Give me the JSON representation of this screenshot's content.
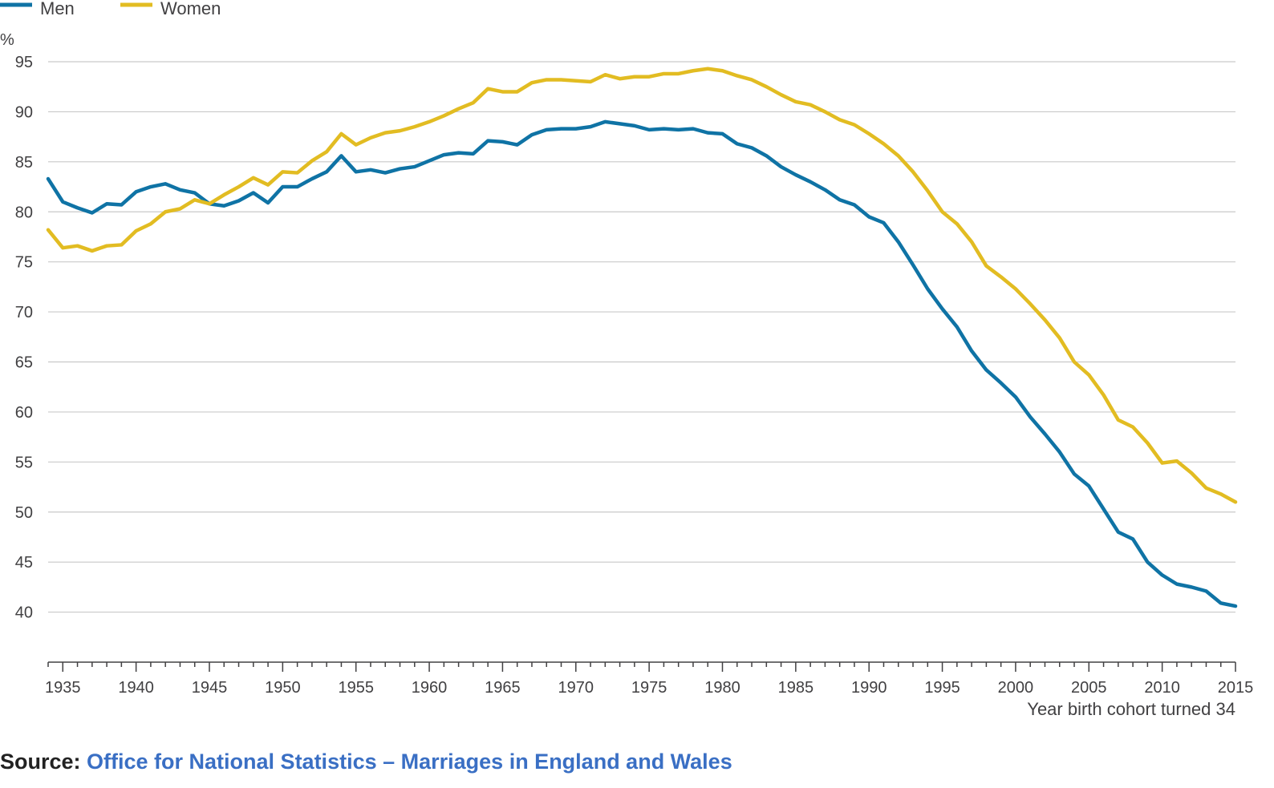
{
  "chart_data": {
    "type": "line",
    "ylabel": "%",
    "xlabel": "Year birth cohort turned 34",
    "ylim": [
      35,
      95
    ],
    "xlim": [
      1934,
      2015
    ],
    "yticks": [
      40,
      45,
      50,
      55,
      60,
      65,
      70,
      75,
      80,
      85,
      90,
      95
    ],
    "xticks": [
      1935,
      1940,
      1945,
      1950,
      1955,
      1960,
      1965,
      1970,
      1975,
      1980,
      1985,
      1990,
      1995,
      2000,
      2005,
      2010,
      2015
    ],
    "grid": true,
    "legend_position": "top-left",
    "x": [
      1934,
      1935,
      1936,
      1937,
      1938,
      1939,
      1940,
      1941,
      1942,
      1943,
      1944,
      1945,
      1946,
      1947,
      1948,
      1949,
      1950,
      1951,
      1952,
      1953,
      1954,
      1955,
      1956,
      1957,
      1958,
      1959,
      1960,
      1961,
      1962,
      1963,
      1964,
      1965,
      1966,
      1967,
      1968,
      1969,
      1970,
      1971,
      1972,
      1973,
      1974,
      1975,
      1976,
      1977,
      1978,
      1979,
      1980,
      1981,
      1982,
      1983,
      1984,
      1985,
      1986,
      1987,
      1988,
      1989,
      1990,
      1991,
      1992,
      1993,
      1994,
      1995,
      1996,
      1997,
      1998,
      1999,
      2000,
      2001,
      2002,
      2003,
      2004,
      2005,
      2006,
      2007,
      2008,
      2009,
      2010,
      2011,
      2012,
      2013,
      2014,
      2015
    ],
    "series": [
      {
        "name": "Men",
        "color": "#0f73a5",
        "values": [
          83.3,
          81.0,
          80.4,
          79.9,
          80.8,
          80.7,
          82.0,
          82.5,
          82.8,
          82.2,
          81.9,
          80.8,
          80.6,
          81.1,
          81.9,
          80.9,
          82.5,
          82.5,
          83.3,
          84.0,
          85.6,
          84.0,
          84.2,
          83.9,
          84.3,
          84.5,
          85.1,
          85.7,
          85.9,
          85.8,
          87.1,
          87.0,
          86.7,
          87.7,
          88.2,
          88.3,
          88.3,
          88.5,
          89.0,
          88.8,
          88.6,
          88.2,
          88.3,
          88.2,
          88.3,
          87.9,
          87.8,
          86.8,
          86.4,
          85.6,
          84.5,
          83.7,
          83.0,
          82.2,
          81.2,
          80.7,
          79.5,
          78.9,
          77.0,
          74.7,
          72.3,
          70.3,
          68.5,
          66.1,
          64.2,
          62.9,
          61.5,
          59.5,
          57.8,
          56.0,
          53.8,
          52.6,
          50.3,
          48.0,
          47.3,
          45.0,
          43.7,
          42.8,
          42.5,
          42.1,
          40.9,
          40.6
        ]
      },
      {
        "name": "Women",
        "color": "#e2bc22",
        "values": [
          78.2,
          76.4,
          76.6,
          76.1,
          76.6,
          76.7,
          78.1,
          78.8,
          80.0,
          80.3,
          81.2,
          80.8,
          81.7,
          82.5,
          83.4,
          82.7,
          84.0,
          83.9,
          85.1,
          86.0,
          87.8,
          86.7,
          87.4,
          87.9,
          88.1,
          88.5,
          89.0,
          89.6,
          90.3,
          90.9,
          92.3,
          92.0,
          92.0,
          92.9,
          93.2,
          93.2,
          93.1,
          93.0,
          93.7,
          93.3,
          93.5,
          93.5,
          93.8,
          93.8,
          94.1,
          94.3,
          94.1,
          93.6,
          93.2,
          92.5,
          91.7,
          91.0,
          90.7,
          90.0,
          89.2,
          88.7,
          87.8,
          86.8,
          85.6,
          84.0,
          82.1,
          80.0,
          78.8,
          77.0,
          74.6,
          73.5,
          72.3,
          70.8,
          69.2,
          67.4,
          65.0,
          63.7,
          61.7,
          59.2,
          58.5,
          56.9,
          54.9,
          55.1,
          53.9,
          52.4,
          51.8,
          51.0
        ]
      }
    ]
  },
  "source": {
    "prefix": "Source: ",
    "link_text": "Office for National Statistics – Marriages in England and Wales"
  }
}
